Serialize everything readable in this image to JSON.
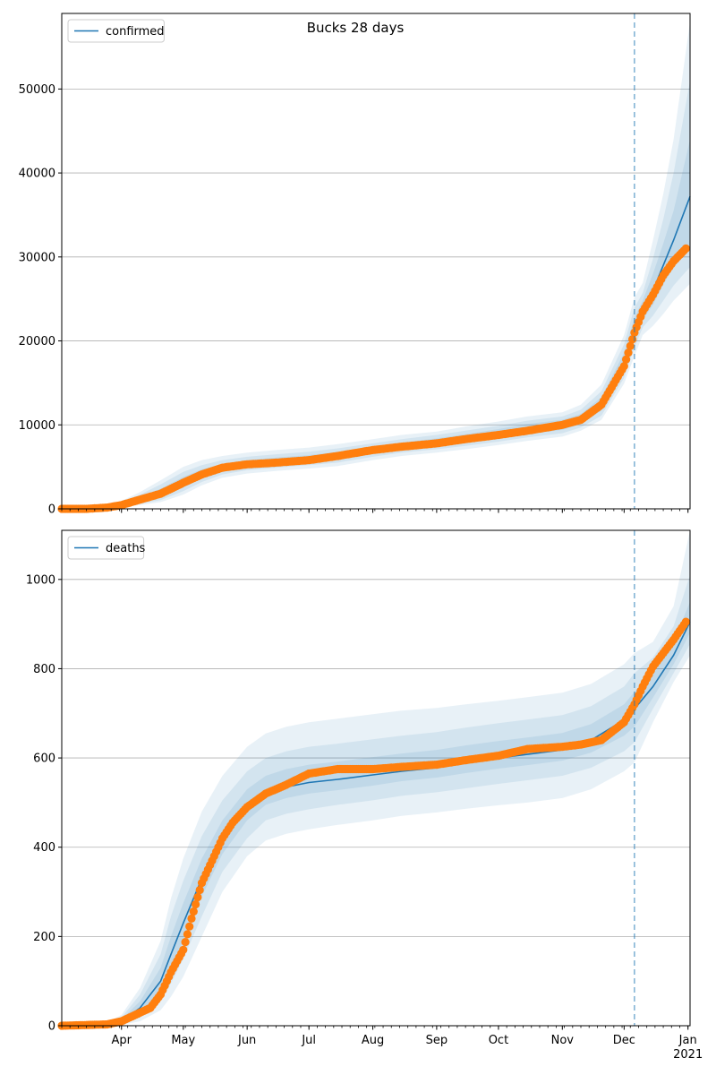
{
  "chart_data": [
    {
      "type": "line",
      "title": "Bucks 28 days",
      "legend": {
        "placement": "top-left",
        "entries": [
          "confirmed"
        ]
      },
      "grid": "y",
      "x_range": [
        "2020-03-03",
        "2021-01-02"
      ],
      "x_ticks": [
        "Apr",
        "May",
        "Jun",
        "Jul",
        "Aug",
        "Sep",
        "Oct",
        "Nov",
        "Dec",
        "Jan"
      ],
      "x_tick_extra": "2021",
      "ylim": [
        0,
        59000
      ],
      "y_ticks": [
        "0",
        "10000",
        "20000",
        "30000",
        "40000",
        "50000"
      ],
      "vline_date": "2020-12-06",
      "fit": {
        "name": "confirmed",
        "x": [
          "2020-03-03",
          "2020-03-25",
          "2020-04-01",
          "2020-04-10",
          "2020-04-20",
          "2020-05-01",
          "2020-05-10",
          "2020-05-20",
          "2020-06-01",
          "2020-06-15",
          "2020-07-01",
          "2020-07-15",
          "2020-08-01",
          "2020-08-15",
          "2020-09-01",
          "2020-09-15",
          "2020-10-01",
          "2020-10-15",
          "2020-11-01",
          "2020-11-10",
          "2020-11-20",
          "2020-12-01",
          "2020-12-06",
          "2020-12-10",
          "2020-12-15",
          "2020-12-20",
          "2020-12-25",
          "2021-01-02"
        ],
        "y": [
          0,
          200,
          500,
          1100,
          1900,
          3200,
          4200,
          4900,
          5400,
          5700,
          6000,
          6300,
          7000,
          7500,
          7900,
          8400,
          8900,
          9500,
          10000,
          10700,
          12500,
          17500,
          21500,
          23500,
          26000,
          29000,
          32000,
          37200
        ],
        "bands": [
          {
            "lower": [
              0,
              150,
              350,
              800,
              1400,
              2600,
              3700,
              4500,
              5000,
              5300,
              5600,
              5900,
              6600,
              7100,
              7500,
              7900,
              8400,
              8900,
              9400,
              10100,
              11700,
              16400,
              20200,
              22500,
              24300,
              26700,
              28800,
              31500
            ],
            "upper": [
              0,
              260,
              650,
              1400,
              2400,
              3800,
              4700,
              5300,
              5800,
              6100,
              6400,
              6800,
              7400,
              7900,
              8400,
              8900,
              9500,
              10100,
              10600,
              11300,
              13300,
              18600,
              22800,
              24800,
              28000,
              31600,
              35500,
              44000
            ]
          },
          {
            "lower": [
              0,
              110,
              250,
              600,
              1050,
              2100,
              3200,
              4100,
              4600,
              4900,
              5200,
              5500,
              6200,
              6700,
              7100,
              7500,
              8000,
              8500,
              9000,
              9700,
              11100,
              15600,
              19200,
              21600,
              23000,
              24800,
              26600,
              28800
            ],
            "upper": [
              0,
              310,
              800,
              1700,
              2900,
              4400,
              5200,
              5800,
              6200,
              6500,
              6800,
              7200,
              7800,
              8300,
              8800,
              9300,
              9900,
              10500,
              11000,
              11800,
              14000,
              19600,
              24000,
              25700,
              29800,
              34500,
              40000,
              51000
            ]
          },
          {
            "lower": [
              0,
              80,
              180,
              450,
              800,
              1700,
              2800,
              3700,
              4200,
              4500,
              4800,
              5100,
              5800,
              6300,
              6700,
              7100,
              7600,
              8100,
              8600,
              9300,
              10600,
              14900,
              18200,
              20700,
              21800,
              23200,
              24800,
              26800
            ],
            "upper": [
              0,
              370,
              950,
              2000,
              3400,
              5000,
              5800,
              6300,
              6700,
              7000,
              7300,
              7700,
              8300,
              8800,
              9200,
              9800,
              10400,
              11000,
              11500,
              12400,
              14800,
              20700,
              25200,
              26900,
              32000,
              37500,
              44000,
              58000
            ]
          }
        ]
      },
      "observed": {
        "x": [
          "2020-03-03",
          "2020-03-15",
          "2020-03-25",
          "2020-04-01",
          "2020-04-10",
          "2020-04-20",
          "2020-05-01",
          "2020-05-10",
          "2020-05-20",
          "2020-06-01",
          "2020-06-15",
          "2020-07-01",
          "2020-07-15",
          "2020-08-01",
          "2020-08-15",
          "2020-09-01",
          "2020-09-15",
          "2020-10-01",
          "2020-10-15",
          "2020-11-01",
          "2020-11-10",
          "2020-11-20",
          "2020-12-01",
          "2020-12-06",
          "2020-12-10",
          "2020-12-15",
          "2020-12-20",
          "2020-12-25",
          "2020-12-31"
        ],
        "y": [
          0,
          0,
          150,
          450,
          1100,
          1800,
          3100,
          4100,
          4900,
          5300,
          5500,
          5800,
          6300,
          7000,
          7400,
          7800,
          8300,
          8800,
          9300,
          10000,
          10600,
          12400,
          17000,
          21000,
          23500,
          25500,
          27800,
          29500,
          31000
        ]
      }
    },
    {
      "type": "line",
      "legend": {
        "placement": "top-left",
        "entries": [
          "deaths"
        ]
      },
      "grid": "y",
      "x_range": [
        "2020-03-03",
        "2021-01-02"
      ],
      "x_ticks": [
        "Apr",
        "May",
        "Jun",
        "Jul",
        "Aug",
        "Sep",
        "Oct",
        "Nov",
        "Dec",
        "Jan"
      ],
      "x_tick_extra": "2021",
      "ylim": [
        0,
        1110
      ],
      "y_ticks": [
        "0",
        "200",
        "400",
        "600",
        "800",
        "1000"
      ],
      "vline_date": "2020-12-06",
      "fit": {
        "name": "deaths",
        "x": [
          "2020-03-03",
          "2020-03-25",
          "2020-04-01",
          "2020-04-10",
          "2020-04-20",
          "2020-04-25",
          "2020-05-01",
          "2020-05-10",
          "2020-05-20",
          "2020-06-01",
          "2020-06-10",
          "2020-06-20",
          "2020-07-01",
          "2020-07-15",
          "2020-08-01",
          "2020-08-15",
          "2020-09-01",
          "2020-09-15",
          "2020-10-01",
          "2020-10-15",
          "2020-11-01",
          "2020-11-15",
          "2020-12-01",
          "2020-12-06",
          "2020-12-15",
          "2020-12-25",
          "2021-01-02"
        ],
        "y": [
          0,
          2,
          10,
          40,
          100,
          160,
          230,
          330,
          420,
          490,
          520,
          535,
          545,
          552,
          562,
          570,
          578,
          590,
          600,
          608,
          618,
          640,
          685,
          710,
          760,
          830,
          905
        ],
        "bands": [
          {
            "lower": [
              0,
              1,
              6,
              28,
              75,
              125,
              190,
              290,
              385,
              460,
              495,
              510,
              520,
              528,
              538,
              548,
              556,
              566,
              576,
              584,
              594,
              612,
              650,
              670,
              735,
              810,
              880
            ],
            "upper": [
              0,
              3,
              14,
              55,
              130,
              200,
              275,
              375,
              460,
              530,
              560,
              575,
              585,
              592,
              602,
              610,
              618,
              628,
              638,
              646,
              656,
              676,
              720,
              748,
              790,
              860,
              950
            ]
          },
          {
            "lower": [
              0,
              0,
              4,
              18,
              55,
              95,
              150,
              245,
              345,
              420,
              460,
              475,
              485,
              495,
              505,
              515,
              523,
              532,
              542,
              550,
              560,
              578,
              615,
              635,
              710,
              790,
              855
            ],
            "upper": [
              0,
              5,
              18,
              70,
              160,
              245,
              325,
              425,
              505,
              570,
              600,
              615,
              625,
              632,
              642,
              650,
              658,
              668,
              678,
              686,
              696,
              716,
              760,
              790,
              825,
              895,
              1010
            ]
          },
          {
            "lower": [
              0,
              0,
              2,
              10,
              35,
              65,
              110,
              200,
              300,
              380,
              415,
              430,
              440,
              450,
              460,
              470,
              478,
              486,
              494,
              500,
              510,
              530,
              570,
              590,
              680,
              770,
              830
            ],
            "upper": [
              0,
              8,
              24,
              85,
              190,
              285,
              375,
              480,
              560,
              625,
              655,
              670,
              680,
              688,
              698,
              706,
              712,
              720,
              728,
              736,
              746,
              766,
              810,
              835,
              860,
              940,
              1110
            ]
          }
        ]
      },
      "observed": {
        "x": [
          "2020-03-03",
          "2020-03-25",
          "2020-04-01",
          "2020-04-08",
          "2020-04-15",
          "2020-04-20",
          "2020-04-25",
          "2020-05-01",
          "2020-05-05",
          "2020-05-10",
          "2020-05-15",
          "2020-05-20",
          "2020-05-25",
          "2020-06-01",
          "2020-06-10",
          "2020-06-20",
          "2020-07-01",
          "2020-07-15",
          "2020-08-01",
          "2020-08-15",
          "2020-09-01",
          "2020-09-15",
          "2020-10-01",
          "2020-10-15",
          "2020-11-01",
          "2020-11-10",
          "2020-11-20",
          "2020-12-01",
          "2020-12-06",
          "2020-12-10",
          "2020-12-15",
          "2020-12-20",
          "2020-12-25",
          "2020-12-31"
        ],
        "y": [
          0,
          3,
          10,
          25,
          40,
          70,
          120,
          170,
          240,
          320,
          370,
          420,
          455,
          490,
          520,
          540,
          565,
          575,
          575,
          580,
          585,
          595,
          605,
          620,
          625,
          630,
          640,
          680,
          720,
          760,
          805,
          835,
          865,
          905
        ]
      }
    }
  ]
}
